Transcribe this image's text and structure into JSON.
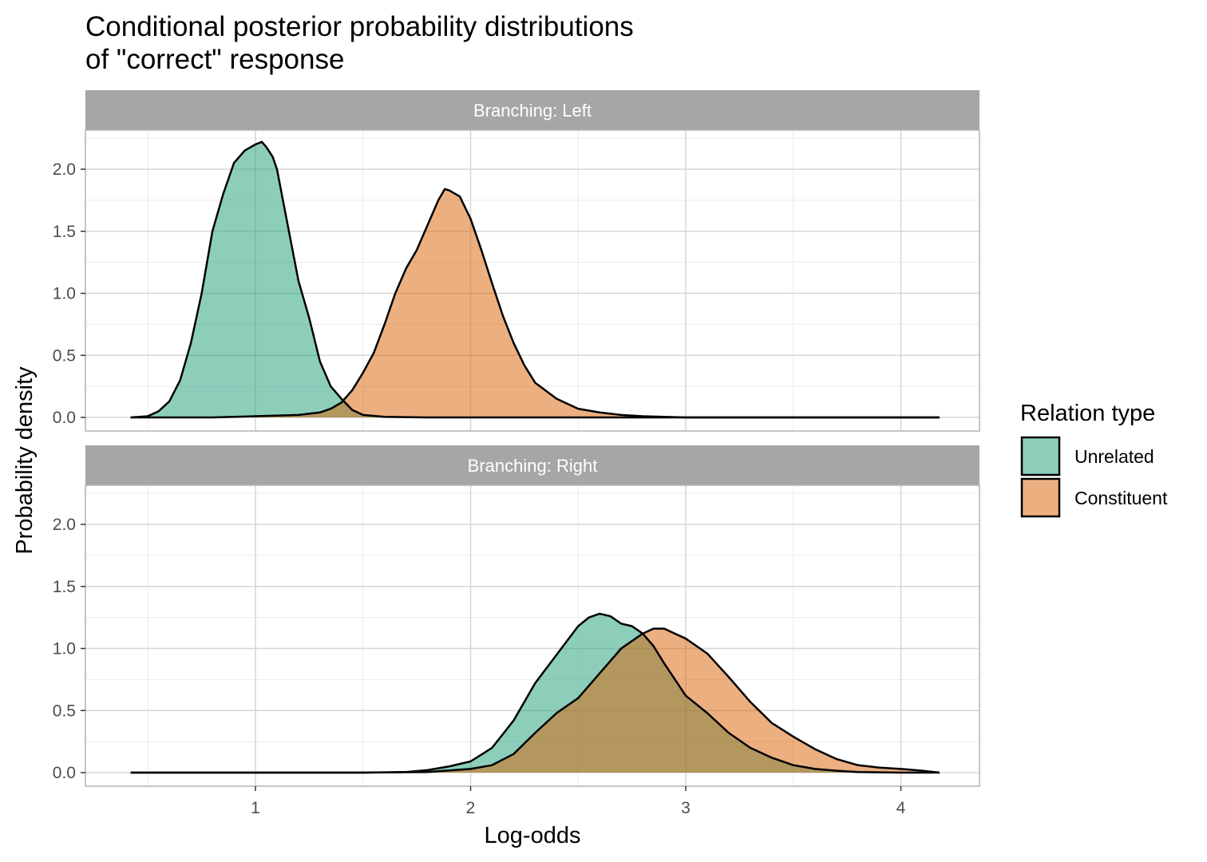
{
  "chart_data": {
    "type": "area",
    "title_lines": [
      "Conditional posterior probability distributions",
      "of \"correct\" response"
    ],
    "xlabel": "Log-odds",
    "ylabel": "Probability density",
    "xlim": [
      0.42,
      4.18
    ],
    "ylim": [
      0,
      2.3
    ],
    "x_ticks": [
      1,
      2,
      3,
      4
    ],
    "x_tick_labels": [
      "1",
      "2",
      "3",
      "4"
    ],
    "y_ticks": [
      0,
      0.5,
      1.0,
      1.5,
      2.0
    ],
    "y_tick_labels": [
      "0.0",
      "0.5",
      "1.0",
      "1.5",
      "2.0"
    ],
    "grid": true,
    "legend": {
      "title": "Relation type",
      "position": "right",
      "entries": [
        {
          "name": "Unrelated",
          "color": "#1b9e77"
        },
        {
          "name": "Constituent",
          "color": "#d95f02"
        }
      ]
    },
    "panels": [
      {
        "strip_label": "Branching: Left",
        "series": [
          {
            "name": "Unrelated",
            "color": "#1b9e77",
            "x": [
              0.42,
              0.5,
              0.55,
              0.6,
              0.65,
              0.7,
              0.75,
              0.8,
              0.85,
              0.9,
              0.95,
              1.0,
              1.03,
              1.05,
              1.08,
              1.1,
              1.15,
              1.2,
              1.25,
              1.3,
              1.35,
              1.4,
              1.45,
              1.5,
              1.6,
              1.8,
              2.0,
              4.18
            ],
            "y": [
              0.0,
              0.01,
              0.05,
              0.13,
              0.3,
              0.6,
              1.0,
              1.5,
              1.8,
              2.05,
              2.15,
              2.2,
              2.22,
              2.18,
              2.1,
              2.0,
              1.55,
              1.1,
              0.8,
              0.45,
              0.25,
              0.15,
              0.06,
              0.02,
              0.005,
              0.0,
              0.0,
              0.0
            ]
          },
          {
            "name": "Constituent",
            "color": "#d95f02",
            "x": [
              0.42,
              0.8,
              1.0,
              1.2,
              1.3,
              1.35,
              1.4,
              1.45,
              1.5,
              1.55,
              1.6,
              1.65,
              1.7,
              1.75,
              1.8,
              1.85,
              1.88,
              1.9,
              1.95,
              2.0,
              2.05,
              2.1,
              2.15,
              2.2,
              2.25,
              2.3,
              2.4,
              2.5,
              2.6,
              2.7,
              2.8,
              3.0,
              3.5,
              4.18
            ],
            "y": [
              0.0,
              0.0,
              0.01,
              0.02,
              0.04,
              0.07,
              0.12,
              0.22,
              0.36,
              0.52,
              0.75,
              1.0,
              1.2,
              1.35,
              1.55,
              1.75,
              1.84,
              1.83,
              1.78,
              1.6,
              1.35,
              1.08,
              0.82,
              0.6,
              0.42,
              0.28,
              0.15,
              0.07,
              0.04,
              0.02,
              0.01,
              0.0,
              0.0,
              0.0
            ]
          }
        ]
      },
      {
        "strip_label": "Branching: Right",
        "series": [
          {
            "name": "Unrelated",
            "color": "#1b9e77",
            "x": [
              0.42,
              1.5,
              1.7,
              1.8,
              1.9,
              2.0,
              2.1,
              2.2,
              2.3,
              2.4,
              2.5,
              2.55,
              2.6,
              2.65,
              2.7,
              2.75,
              2.8,
              2.85,
              2.9,
              3.0,
              3.1,
              3.2,
              3.3,
              3.4,
              3.5,
              3.6,
              3.7,
              3.8,
              4.0,
              4.18
            ],
            "y": [
              0.0,
              0.0,
              0.005,
              0.02,
              0.05,
              0.09,
              0.2,
              0.42,
              0.72,
              0.95,
              1.18,
              1.25,
              1.28,
              1.26,
              1.2,
              1.18,
              1.12,
              1.02,
              0.88,
              0.62,
              0.48,
              0.32,
              0.2,
              0.12,
              0.06,
              0.03,
              0.015,
              0.005,
              0.0,
              0.0
            ]
          },
          {
            "name": "Constituent",
            "color": "#d95f02",
            "x": [
              0.42,
              1.5,
              1.8,
              2.0,
              2.1,
              2.2,
              2.3,
              2.4,
              2.5,
              2.6,
              2.7,
              2.8,
              2.85,
              2.9,
              2.95,
              3.0,
              3.1,
              3.2,
              3.3,
              3.4,
              3.5,
              3.6,
              3.7,
              3.8,
              3.9,
              4.0,
              4.1,
              4.18
            ],
            "y": [
              0.0,
              0.0,
              0.005,
              0.03,
              0.06,
              0.15,
              0.32,
              0.48,
              0.6,
              0.8,
              1.0,
              1.12,
              1.16,
              1.16,
              1.12,
              1.08,
              0.96,
              0.77,
              0.57,
              0.4,
              0.29,
              0.19,
              0.11,
              0.06,
              0.04,
              0.03,
              0.015,
              0.0
            ]
          }
        ]
      }
    ]
  }
}
